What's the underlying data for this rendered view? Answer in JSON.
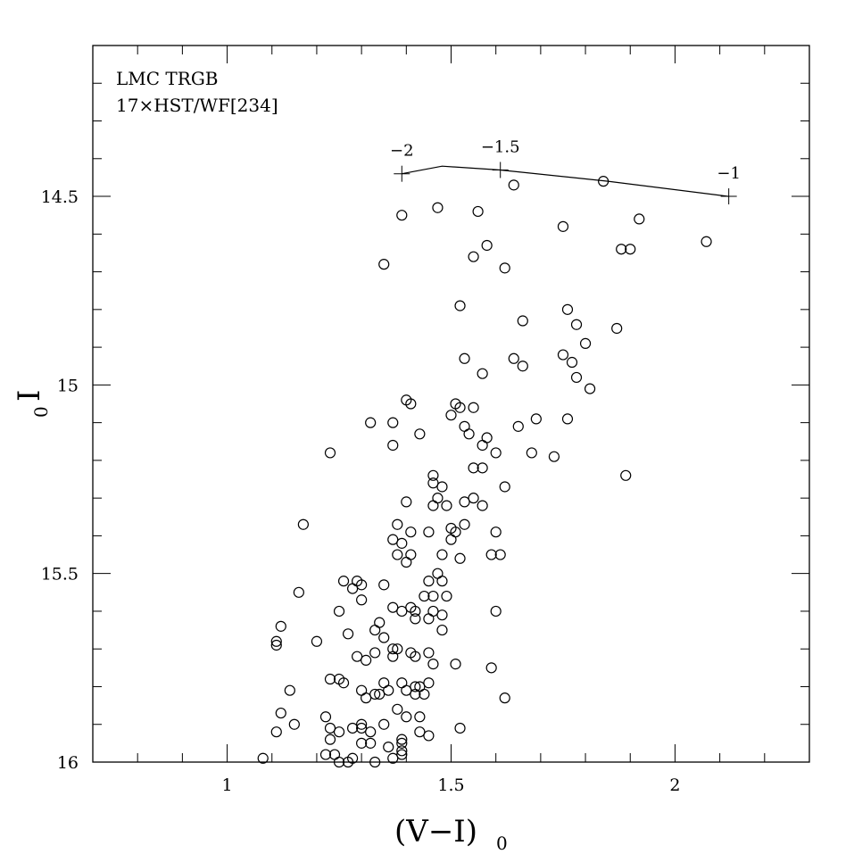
{
  "chart_data": {
    "type": "scatter",
    "title": "",
    "annotation_lines": [
      "LMC TRGB",
      "17×HST/WF[234]"
    ],
    "xlabel": "(V−I)",
    "xlabel_subscript": "0",
    "ylabel": "I",
    "ylabel_subscript": "0",
    "xlim": [
      0.7,
      2.3
    ],
    "ylim": [
      16.0,
      14.1
    ],
    "y_inverted": true,
    "x_ticks": [
      1,
      1.5,
      2
    ],
    "x_tick_labels": [
      "1",
      "1.5",
      "2"
    ],
    "y_ticks": [
      14.5,
      15,
      15.5,
      16
    ],
    "y_tick_labels": [
      "14.5",
      "15",
      "15.5",
      "16"
    ],
    "grid": false,
    "marker": "open-circle",
    "points": [
      [
        1.39,
        14.55
      ],
      [
        1.47,
        14.53
      ],
      [
        1.56,
        14.54
      ],
      [
        1.64,
        14.47
      ],
      [
        1.84,
        14.46
      ],
      [
        1.75,
        14.58
      ],
      [
        1.92,
        14.56
      ],
      [
        2.07,
        14.62
      ],
      [
        1.88,
        14.64
      ],
      [
        1.9,
        14.64
      ],
      [
        1.58,
        14.63
      ],
      [
        1.55,
        14.66
      ],
      [
        1.62,
        14.69
      ],
      [
        1.35,
        14.68
      ],
      [
        1.52,
        14.79
      ],
      [
        1.66,
        14.83
      ],
      [
        1.76,
        14.8
      ],
      [
        1.78,
        14.84
      ],
      [
        1.87,
        14.85
      ],
      [
        1.8,
        14.89
      ],
      [
        1.53,
        14.93
      ],
      [
        1.64,
        14.93
      ],
      [
        1.66,
        14.95
      ],
      [
        1.57,
        14.97
      ],
      [
        1.75,
        14.92
      ],
      [
        1.77,
        14.94
      ],
      [
        1.78,
        14.98
      ],
      [
        1.81,
        15.01
      ],
      [
        1.4,
        15.04
      ],
      [
        1.41,
        15.05
      ],
      [
        1.51,
        15.05
      ],
      [
        1.52,
        15.06
      ],
      [
        1.55,
        15.06
      ],
      [
        1.32,
        15.1
      ],
      [
        1.37,
        15.1
      ],
      [
        1.43,
        15.13
      ],
      [
        1.5,
        15.08
      ],
      [
        1.53,
        15.11
      ],
      [
        1.54,
        15.13
      ],
      [
        1.58,
        15.14
      ],
      [
        1.57,
        15.16
      ],
      [
        1.6,
        15.18
      ],
      [
        1.65,
        15.11
      ],
      [
        1.69,
        15.09
      ],
      [
        1.76,
        15.09
      ],
      [
        1.68,
        15.18
      ],
      [
        1.73,
        15.19
      ],
      [
        1.37,
        15.16
      ],
      [
        1.23,
        15.18
      ],
      [
        1.55,
        15.22
      ],
      [
        1.57,
        15.22
      ],
      [
        1.46,
        15.24
      ],
      [
        1.46,
        15.26
      ],
      [
        1.48,
        15.27
      ],
      [
        1.62,
        15.27
      ],
      [
        1.89,
        15.24
      ],
      [
        1.4,
        15.31
      ],
      [
        1.47,
        15.3
      ],
      [
        1.49,
        15.32
      ],
      [
        1.53,
        15.31
      ],
      [
        1.55,
        15.3
      ],
      [
        1.57,
        15.32
      ],
      [
        1.46,
        15.32
      ],
      [
        1.17,
        15.37
      ],
      [
        1.38,
        15.37
      ],
      [
        1.41,
        15.39
      ],
      [
        1.45,
        15.39
      ],
      [
        1.5,
        15.38
      ],
      [
        1.51,
        15.39
      ],
      [
        1.53,
        15.37
      ],
      [
        1.6,
        15.39
      ],
      [
        1.37,
        15.41
      ],
      [
        1.39,
        15.42
      ],
      [
        1.4,
        15.47
      ],
      [
        1.41,
        15.45
      ],
      [
        1.38,
        15.45
      ],
      [
        1.48,
        15.45
      ],
      [
        1.5,
        15.41
      ],
      [
        1.52,
        15.46
      ],
      [
        1.59,
        15.45
      ],
      [
        1.61,
        15.45
      ],
      [
        1.26,
        15.52
      ],
      [
        1.28,
        15.54
      ],
      [
        1.29,
        15.52
      ],
      [
        1.3,
        15.53
      ],
      [
        1.35,
        15.53
      ],
      [
        1.3,
        15.57
      ],
      [
        1.45,
        15.52
      ],
      [
        1.47,
        15.5
      ],
      [
        1.48,
        15.52
      ],
      [
        1.49,
        15.56
      ],
      [
        1.46,
        15.56
      ],
      [
        1.44,
        15.56
      ],
      [
        1.16,
        15.55
      ],
      [
        1.37,
        15.59
      ],
      [
        1.39,
        15.6
      ],
      [
        1.41,
        15.59
      ],
      [
        1.42,
        15.6
      ],
      [
        1.42,
        15.62
      ],
      [
        1.45,
        15.62
      ],
      [
        1.46,
        15.6
      ],
      [
        1.48,
        15.61
      ],
      [
        1.48,
        15.65
      ],
      [
        1.6,
        15.6
      ],
      [
        1.25,
        15.6
      ],
      [
        1.12,
        15.64
      ],
      [
        1.11,
        15.69
      ],
      [
        1.11,
        15.68
      ],
      [
        1.2,
        15.68
      ],
      [
        1.27,
        15.66
      ],
      [
        1.33,
        15.65
      ],
      [
        1.34,
        15.63
      ],
      [
        1.35,
        15.67
      ],
      [
        1.37,
        15.7
      ],
      [
        1.38,
        15.7
      ],
      [
        1.29,
        15.72
      ],
      [
        1.31,
        15.73
      ],
      [
        1.33,
        15.71
      ],
      [
        1.37,
        15.72
      ],
      [
        1.42,
        15.72
      ],
      [
        1.41,
        15.71
      ],
      [
        1.45,
        15.71
      ],
      [
        1.46,
        15.74
      ],
      [
        1.51,
        15.74
      ],
      [
        1.59,
        15.75
      ],
      [
        1.23,
        15.78
      ],
      [
        1.25,
        15.78
      ],
      [
        1.26,
        15.79
      ],
      [
        1.35,
        15.79
      ],
      [
        1.39,
        15.79
      ],
      [
        1.4,
        15.81
      ],
      [
        1.42,
        15.8
      ],
      [
        1.43,
        15.8
      ],
      [
        1.45,
        15.79
      ],
      [
        1.3,
        15.81
      ],
      [
        1.34,
        15.82
      ],
      [
        1.14,
        15.81
      ],
      [
        1.31,
        15.83
      ],
      [
        1.33,
        15.82
      ],
      [
        1.36,
        15.81
      ],
      [
        1.42,
        15.82
      ],
      [
        1.44,
        15.82
      ],
      [
        1.62,
        15.83
      ],
      [
        1.12,
        15.87
      ],
      [
        1.22,
        15.88
      ],
      [
        1.3,
        15.9
      ],
      [
        1.3,
        15.91
      ],
      [
        1.35,
        15.9
      ],
      [
        1.38,
        15.86
      ],
      [
        1.4,
        15.88
      ],
      [
        1.43,
        15.88
      ],
      [
        1.15,
        15.9
      ],
      [
        1.11,
        15.92
      ],
      [
        1.23,
        15.91
      ],
      [
        1.25,
        15.92
      ],
      [
        1.28,
        15.91
      ],
      [
        1.32,
        15.92
      ],
      [
        1.3,
        15.95
      ],
      [
        1.32,
        15.95
      ],
      [
        1.36,
        15.96
      ],
      [
        1.39,
        15.95
      ],
      [
        1.39,
        15.94
      ],
      [
        1.43,
        15.92
      ],
      [
        1.45,
        15.93
      ],
      [
        1.52,
        15.91
      ],
      [
        1.23,
        15.94
      ],
      [
        1.24,
        15.98
      ],
      [
        1.28,
        15.99
      ],
      [
        1.08,
        15.99
      ],
      [
        1.22,
        15.98
      ],
      [
        1.25,
        16.0
      ],
      [
        1.27,
        16.0
      ],
      [
        1.33,
        16.0
      ],
      [
        1.37,
        15.99
      ],
      [
        1.39,
        15.97
      ],
      [
        1.39,
        15.98
      ]
    ],
    "marker_track": {
      "points": [
        [
          1.39,
          14.44
        ],
        [
          1.48,
          14.42
        ],
        [
          1.61,
          14.43
        ],
        [
          1.85,
          14.46
        ],
        [
          2.12,
          14.5
        ]
      ],
      "labelled_marks": [
        {
          "x": 1.39,
          "y": 14.44,
          "label": "−2"
        },
        {
          "x": 1.61,
          "y": 14.43,
          "label": "−1.5"
        },
        {
          "x": 2.12,
          "y": 14.5,
          "label": "−1"
        }
      ]
    }
  }
}
